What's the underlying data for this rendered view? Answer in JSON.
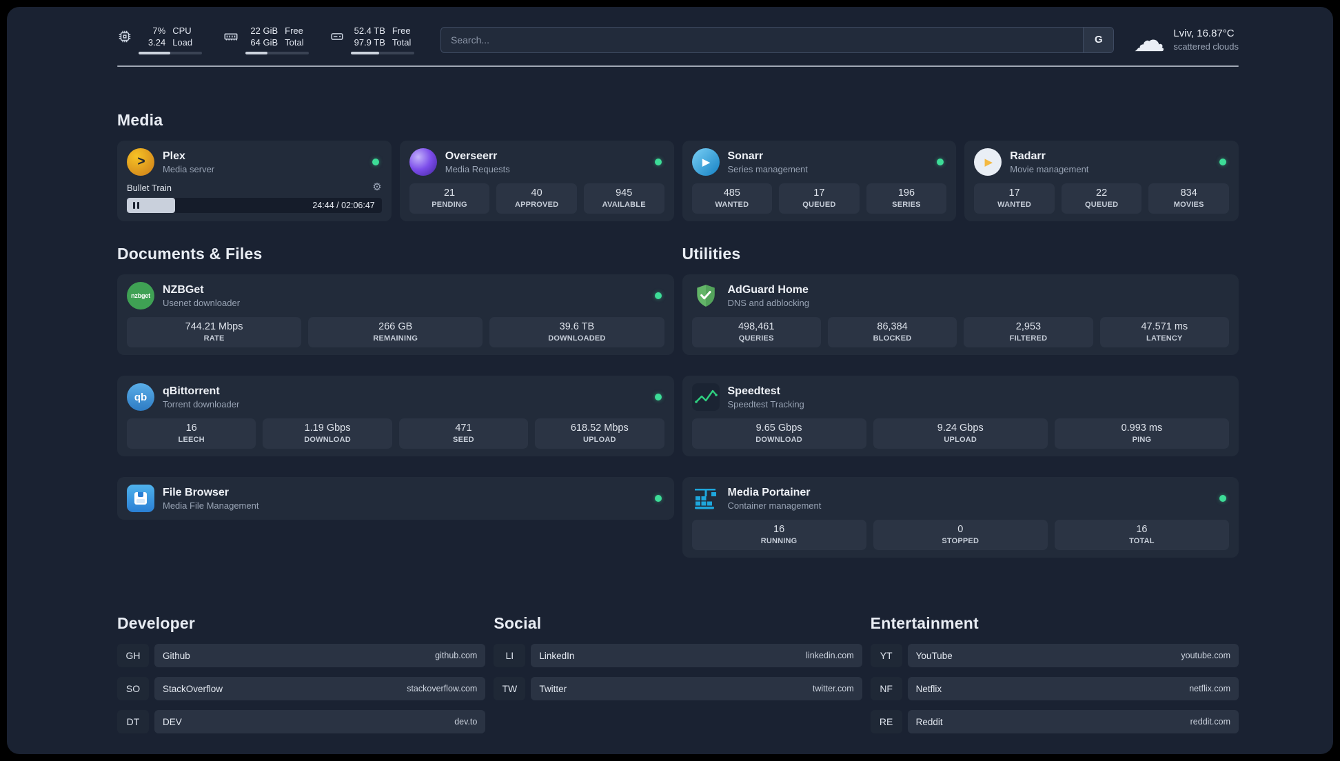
{
  "topbar": {
    "metrics": [
      {
        "rows": [
          {
            "v": "7%",
            "l": "CPU"
          },
          {
            "v": "3.24",
            "l": "Load"
          }
        ],
        "progress_pct": 50
      },
      {
        "rows": [
          {
            "v": "22 GiB",
            "l": "Free"
          },
          {
            "v": "64 GiB",
            "l": "Total"
          }
        ],
        "progress_pct": 35
      },
      {
        "rows": [
          {
            "v": "52.4 TB",
            "l": "Free"
          },
          {
            "v": "97.9 TB",
            "l": "Total"
          }
        ],
        "progress_pct": 45
      }
    ],
    "search": {
      "placeholder": "Search...",
      "provider_label": "G"
    },
    "weather": {
      "location": "Lviv, 16.87°C",
      "condition": "scattered clouds"
    }
  },
  "sections": {
    "media": "Media",
    "documents": "Documents & Files",
    "utilities": "Utilities"
  },
  "services": {
    "plex": {
      "name": "Plex",
      "desc": "Media server",
      "now_playing": "Bullet Train",
      "time": "24:44 / 02:06:47",
      "progress_pct": 19
    },
    "overseerr": {
      "name": "Overseerr",
      "desc": "Media Requests",
      "stats": [
        {
          "v": "21",
          "l": "PENDING"
        },
        {
          "v": "40",
          "l": "APPROVED"
        },
        {
          "v": "945",
          "l": "AVAILABLE"
        }
      ]
    },
    "sonarr": {
      "name": "Sonarr",
      "desc": "Series management",
      "stats": [
        {
          "v": "485",
          "l": "WANTED"
        },
        {
          "v": "17",
          "l": "QUEUED"
        },
        {
          "v": "196",
          "l": "SERIES"
        }
      ]
    },
    "radarr": {
      "name": "Radarr",
      "desc": "Movie management",
      "stats": [
        {
          "v": "17",
          "l": "WANTED"
        },
        {
          "v": "22",
          "l": "QUEUED"
        },
        {
          "v": "834",
          "l": "MOVIES"
        }
      ]
    },
    "nzbget": {
      "name": "NZBGet",
      "desc": "Usenet downloader",
      "stats": [
        {
          "v": "744.21 Mbps",
          "l": "RATE"
        },
        {
          "v": "266 GB",
          "l": "REMAINING"
        },
        {
          "v": "39.6 TB",
          "l": "DOWNLOADED"
        }
      ]
    },
    "qbittorrent": {
      "name": "qBittorrent",
      "desc": "Torrent downloader",
      "stats": [
        {
          "v": "16",
          "l": "LEECH"
        },
        {
          "v": "1.19 Gbps",
          "l": "DOWNLOAD"
        },
        {
          "v": "471",
          "l": "SEED"
        },
        {
          "v": "618.52 Mbps",
          "l": "UPLOAD"
        }
      ]
    },
    "filebrowser": {
      "name": "File Browser",
      "desc": "Media File Management"
    },
    "adguard": {
      "name": "AdGuard Home",
      "desc": "DNS and adblocking",
      "stats": [
        {
          "v": "498,461",
          "l": "QUERIES"
        },
        {
          "v": "86,384",
          "l": "BLOCKED"
        },
        {
          "v": "2,953",
          "l": "FILTERED"
        },
        {
          "v": "47.571 ms",
          "l": "LATENCY"
        }
      ]
    },
    "speedtest": {
      "name": "Speedtest",
      "desc": "Speedtest Tracking",
      "stats": [
        {
          "v": "9.65 Gbps",
          "l": "DOWNLOAD"
        },
        {
          "v": "9.24 Gbps",
          "l": "UPLOAD"
        },
        {
          "v": "0.993 ms",
          "l": "PING"
        }
      ]
    },
    "portainer": {
      "name": "Media Portainer",
      "desc": "Container management",
      "stats": [
        {
          "v": "16",
          "l": "RUNNING"
        },
        {
          "v": "0",
          "l": "STOPPED"
        },
        {
          "v": "16",
          "l": "TOTAL"
        }
      ]
    }
  },
  "bookmarks": {
    "developer": {
      "title": "Developer",
      "items": [
        {
          "abbr": "GH",
          "name": "Github",
          "url": "github.com"
        },
        {
          "abbr": "SO",
          "name": "StackOverflow",
          "url": "stackoverflow.com"
        },
        {
          "abbr": "DT",
          "name": "DEV",
          "url": "dev.to"
        }
      ]
    },
    "social": {
      "title": "Social",
      "items": [
        {
          "abbr": "LI",
          "name": "LinkedIn",
          "url": "linkedin.com"
        },
        {
          "abbr": "TW",
          "name": "Twitter",
          "url": "twitter.com"
        }
      ]
    },
    "entertainment": {
      "title": "Entertainment",
      "items": [
        {
          "abbr": "YT",
          "name": "YouTube",
          "url": "youtube.com"
        },
        {
          "abbr": "NF",
          "name": "Netflix",
          "url": "netflix.com"
        },
        {
          "abbr": "RE",
          "name": "Reddit",
          "url": "reddit.com"
        }
      ]
    }
  },
  "icons": {
    "plex_chevron": ">",
    "sonarr_play": "▶",
    "radarr_play": "▶",
    "nzbget_label": "nzbget",
    "qb_label": "qb",
    "gear": "⚙",
    "cloud": "☁"
  },
  "colors": {
    "status_online": "#3ddc97",
    "plex": "#e5a00d",
    "overseerr": "#7c4dea",
    "sonarr": "#35c5f4",
    "radarr": "#f4b942",
    "nzbget": "#3fa154",
    "qbittorrent": "#4ba3e3",
    "adguard": "#63b568",
    "speedtest": "#2fd180",
    "filebrowser": "#3b9ddd",
    "portainer": "#1ea7dd"
  }
}
